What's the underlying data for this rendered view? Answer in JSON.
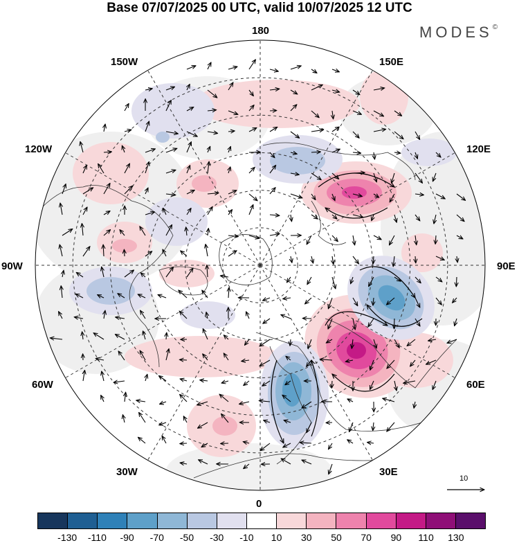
{
  "title": "Base 07/07/2025 00 UTC, valid 10/07/2025 12 UTC",
  "brand": "MODES",
  "brand_mark": "©",
  "longitude_labels": {
    "lon_180": "180",
    "lon_150w": "150W",
    "lon_150e": "150E",
    "lon_120w": "120W",
    "lon_120e": "120E",
    "lon_90w": "90W",
    "lon_90e": "90E",
    "lon_60w": "60W",
    "lon_60e": "60E",
    "lon_30w": "30W",
    "lon_30e": "30E",
    "lon_0": "0"
  },
  "reference_vector_label": "10",
  "colorbar": {
    "colors": [
      "#17365c",
      "#1f5f93",
      "#2f81b8",
      "#5ea0c9",
      "#8fb7d6",
      "#b9c8e2",
      "#e1e0ef",
      "#ffffff",
      "#f8d8da",
      "#f4b4c0",
      "#ee83ad",
      "#e14a9d",
      "#c41a86",
      "#8f0f77",
      "#5a0f6b"
    ],
    "ticks": [
      "-130",
      "-110",
      "-90",
      "-70",
      "-50",
      "-30",
      "-10",
      "10",
      "30",
      "50",
      "70",
      "90",
      "110",
      "130"
    ]
  }
}
